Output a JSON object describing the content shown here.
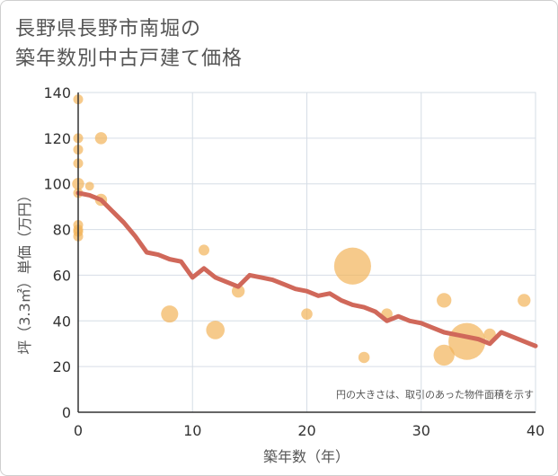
{
  "title_lines": [
    "長野県長野市南堀の",
    "築年数別中古戸建て価格"
  ],
  "note": "円の大きさは、取引のあった物件面積を示す",
  "colors": {
    "bubble": "#f2b35a",
    "line": "#d0685a",
    "grid": "#d6dde6",
    "axis": "#333333"
  },
  "chart_data": {
    "type": "scatter",
    "xlabel": "築年数（年）",
    "ylabel": "坪（3.3㎡）単価（万円）",
    "xlim": [
      0,
      40
    ],
    "ylim": [
      0,
      140
    ],
    "xticks": [
      0,
      10,
      20,
      30,
      40
    ],
    "yticks": [
      0,
      20,
      40,
      60,
      80,
      100,
      120,
      140
    ],
    "grid": true,
    "bubbles": [
      {
        "x": 0,
        "y": 137,
        "size": 1
      },
      {
        "x": 0,
        "y": 120,
        "size": 1
      },
      {
        "x": 0,
        "y": 115,
        "size": 1
      },
      {
        "x": 0,
        "y": 109,
        "size": 1
      },
      {
        "x": 0,
        "y": 100,
        "size": 1.5
      },
      {
        "x": 0,
        "y": 96,
        "size": 1
      },
      {
        "x": 0,
        "y": 82,
        "size": 1
      },
      {
        "x": 0,
        "y": 80,
        "size": 1
      },
      {
        "x": 0,
        "y": 79,
        "size": 1
      },
      {
        "x": 0,
        "y": 77,
        "size": 1
      },
      {
        "x": 1,
        "y": 99,
        "size": 0.8
      },
      {
        "x": 2,
        "y": 120,
        "size": 1.5
      },
      {
        "x": 2,
        "y": 93,
        "size": 1.5
      },
      {
        "x": 8,
        "y": 43,
        "size": 3
      },
      {
        "x": 11,
        "y": 71,
        "size": 1.2
      },
      {
        "x": 12,
        "y": 36,
        "size": 3.5
      },
      {
        "x": 14,
        "y": 53,
        "size": 1.7
      },
      {
        "x": 20,
        "y": 43,
        "size": 1.3
      },
      {
        "x": 24,
        "y": 64,
        "size": 14
      },
      {
        "x": 25,
        "y": 24,
        "size": 1.3
      },
      {
        "x": 27,
        "y": 43,
        "size": 1.3
      },
      {
        "x": 32,
        "y": 49,
        "size": 2.2
      },
      {
        "x": 32,
        "y": 25,
        "size": 4.5
      },
      {
        "x": 34,
        "y": 31,
        "size": 14
      },
      {
        "x": 36,
        "y": 34,
        "size": 1.5
      },
      {
        "x": 39,
        "y": 49,
        "size": 1.7
      }
    ],
    "trend": {
      "x": [
        0,
        1,
        2,
        3,
        4,
        5,
        6,
        7,
        8,
        9,
        10,
        11,
        12,
        13,
        14,
        15,
        16,
        17,
        18,
        19,
        20,
        21,
        22,
        23,
        24,
        25,
        26,
        27,
        28,
        29,
        30,
        31,
        32,
        33,
        34,
        35,
        36,
        37,
        38,
        39,
        40
      ],
      "y": [
        96,
        95,
        93,
        88,
        83,
        77,
        70,
        69,
        67,
        66,
        59,
        63,
        59,
        57,
        55,
        60,
        59,
        58,
        56,
        54,
        53,
        51,
        52,
        49,
        47,
        46,
        44,
        40,
        42,
        40,
        39,
        37,
        35,
        34,
        33,
        32,
        30,
        35,
        33,
        31,
        29
      ]
    }
  }
}
